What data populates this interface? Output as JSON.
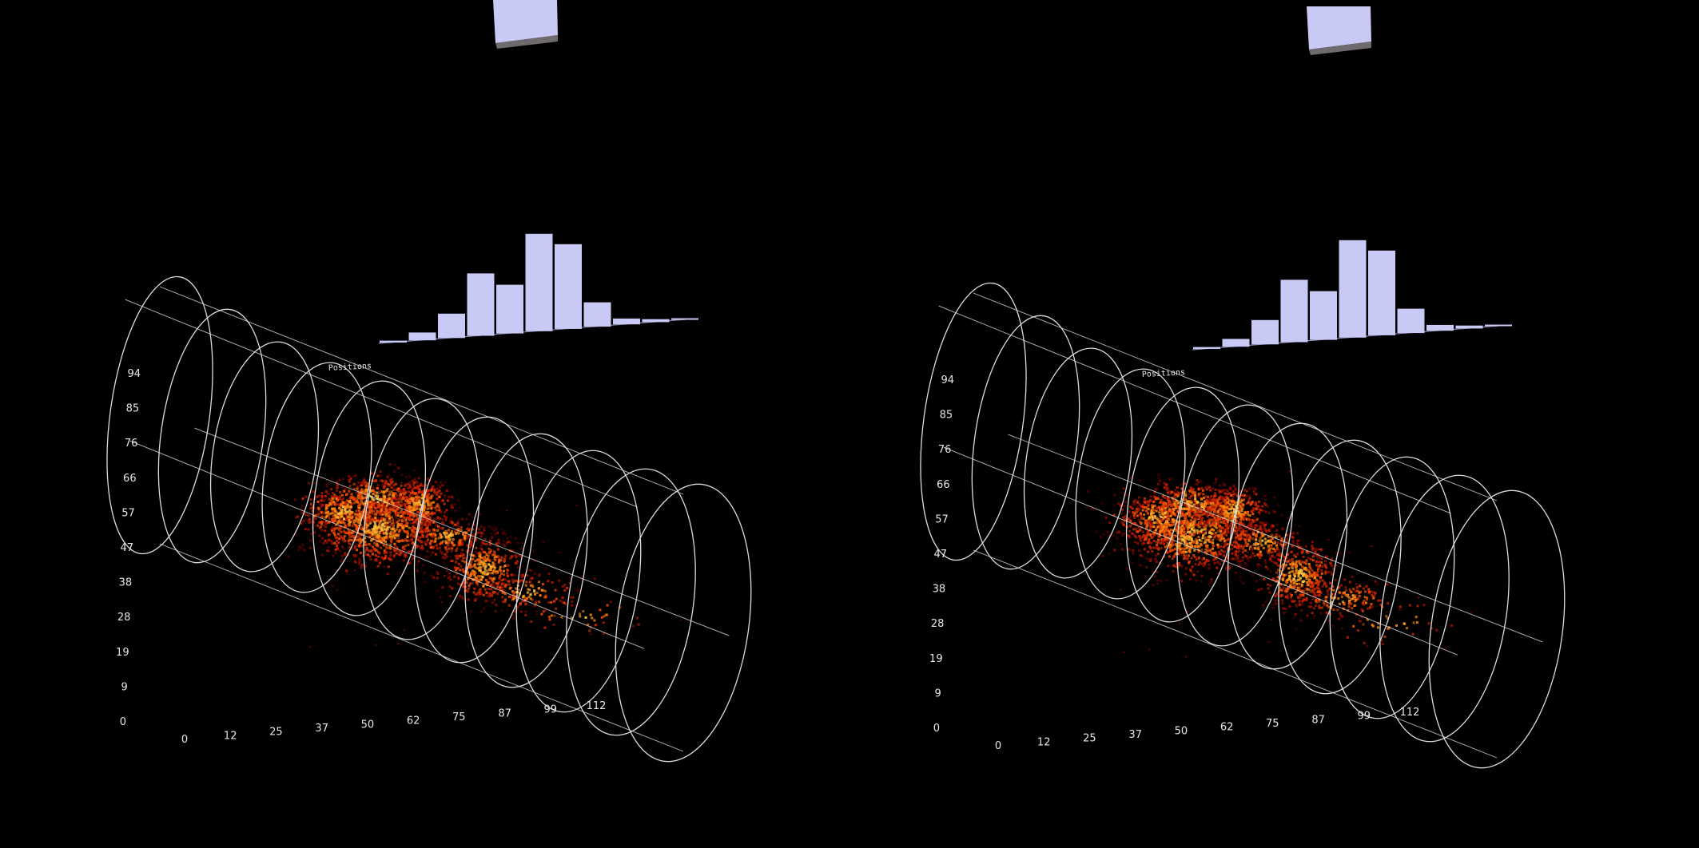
{
  "scene": {
    "background_color": "#000000",
    "wireframe_color": "#dcdcdc",
    "bar_color": "#c9c9f5",
    "bar_shadow_color": "#6e6a6e",
    "heat_colors": [
      "#4a0000",
      "#8b0a00",
      "#c82000",
      "#f04a00",
      "#ff8a10",
      "#ffc040"
    ]
  },
  "positions_label": "Positions",
  "vertical_axis_ticks": [
    "94",
    "85",
    "76",
    "66",
    "57",
    "47",
    "38",
    "28",
    "19",
    "9",
    "0"
  ],
  "horizontal_axis_ticks": [
    "0",
    "12",
    "25",
    "37",
    "50",
    "62",
    "75",
    "87",
    "99",
    "112"
  ],
  "histogram_levels": [
    0.02,
    0.08,
    0.25,
    0.64,
    0.5,
    1.0,
    0.87,
    0.25,
    0.06,
    0.03,
    0.01
  ],
  "views": [
    {
      "name": "left-eye"
    },
    {
      "name": "right-eye"
    }
  ]
}
